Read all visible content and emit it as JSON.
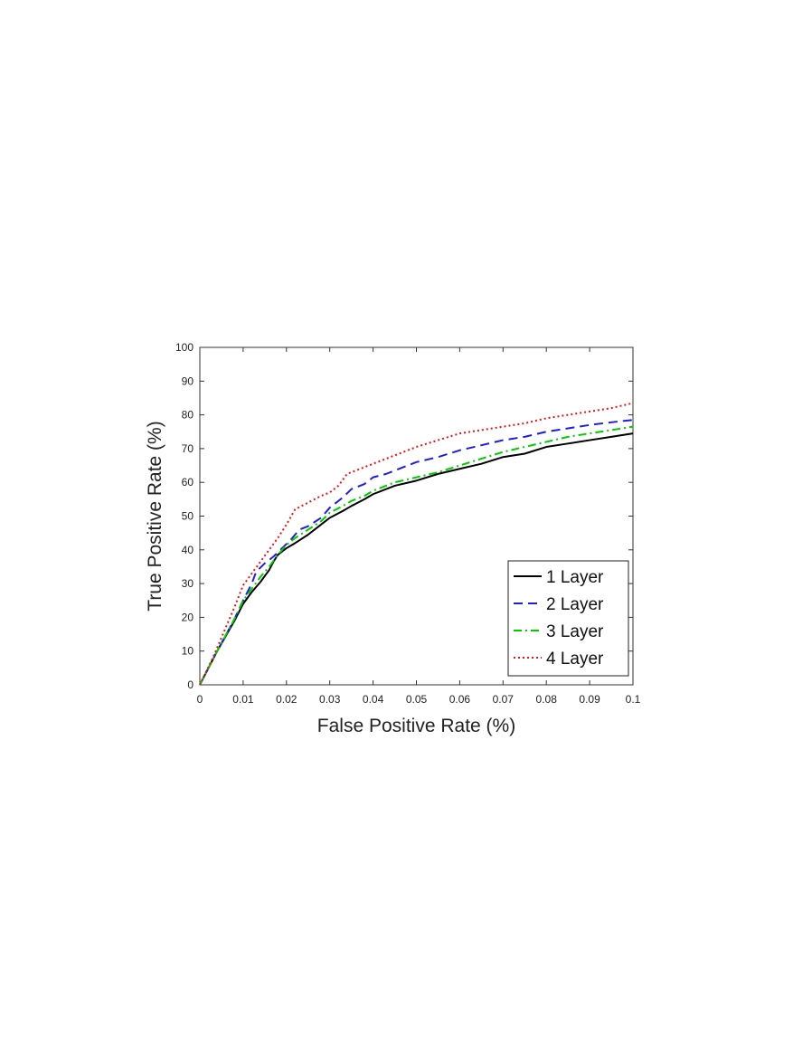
{
  "chart_data": {
    "type": "line",
    "title": "",
    "xlabel": "False Positive Rate (%)",
    "ylabel": "True Positive Rate (%)",
    "xlim": [
      0,
      0.1
    ],
    "ylim": [
      0,
      100
    ],
    "xticks": [
      0,
      0.01,
      0.02,
      0.03,
      0.04,
      0.05,
      0.06,
      0.07,
      0.08,
      0.09,
      0.1
    ],
    "xtick_labels": [
      "0",
      "0.01",
      "0.02",
      "0.03",
      "0.04",
      "0.05",
      "0.06",
      "0.07",
      "0.08",
      "0.09",
      "0.1"
    ],
    "yticks": [
      0,
      10,
      20,
      30,
      40,
      50,
      60,
      70,
      80,
      90,
      100
    ],
    "ytick_labels": [
      "0",
      "10",
      "20",
      "30",
      "40",
      "50",
      "60",
      "70",
      "80",
      "90",
      "100"
    ],
    "grid": false,
    "legend_position": "bottom-right",
    "series": [
      {
        "name": "1 Layer",
        "color": "#000000",
        "dash": "solid",
        "points": [
          [
            0,
            0
          ],
          [
            0.004,
            10
          ],
          [
            0.008,
            19
          ],
          [
            0.01,
            24
          ],
          [
            0.012,
            27.5
          ],
          [
            0.014,
            30.5
          ],
          [
            0.016,
            34
          ],
          [
            0.017,
            36.5
          ],
          [
            0.018,
            38.5
          ],
          [
            0.02,
            40.5
          ],
          [
            0.022,
            42
          ],
          [
            0.025,
            44.5
          ],
          [
            0.028,
            47.5
          ],
          [
            0.03,
            49.5
          ],
          [
            0.033,
            51.5
          ],
          [
            0.035,
            53
          ],
          [
            0.038,
            55
          ],
          [
            0.04,
            56.5
          ],
          [
            0.043,
            58
          ],
          [
            0.045,
            59
          ],
          [
            0.05,
            60.5
          ],
          [
            0.055,
            62.5
          ],
          [
            0.06,
            64
          ],
          [
            0.065,
            65.5
          ],
          [
            0.07,
            67.5
          ],
          [
            0.075,
            68.5
          ],
          [
            0.08,
            70.5
          ],
          [
            0.085,
            71.5
          ],
          [
            0.09,
            72.5
          ],
          [
            0.095,
            73.5
          ],
          [
            0.1,
            74.5
          ]
        ]
      },
      {
        "name": "2 Layer",
        "color": "#1f1fdb",
        "dash": "dashed",
        "points": [
          [
            0,
            0
          ],
          [
            0.004,
            10
          ],
          [
            0.008,
            19.5
          ],
          [
            0.01,
            25
          ],
          [
            0.012,
            30
          ],
          [
            0.013,
            33.5
          ],
          [
            0.015,
            36
          ],
          [
            0.017,
            38
          ],
          [
            0.019,
            40.5
          ],
          [
            0.021,
            43
          ],
          [
            0.023,
            46
          ],
          [
            0.025,
            47
          ],
          [
            0.028,
            49.5
          ],
          [
            0.03,
            52.5
          ],
          [
            0.033,
            55.5
          ],
          [
            0.035,
            58
          ],
          [
            0.038,
            59.5
          ],
          [
            0.04,
            61.5
          ],
          [
            0.043,
            62.5
          ],
          [
            0.045,
            63.5
          ],
          [
            0.05,
            66
          ],
          [
            0.055,
            67.5
          ],
          [
            0.06,
            69.5
          ],
          [
            0.065,
            71
          ],
          [
            0.07,
            72.5
          ],
          [
            0.075,
            73.5
          ],
          [
            0.08,
            75
          ],
          [
            0.085,
            76
          ],
          [
            0.09,
            77
          ],
          [
            0.095,
            77.8
          ],
          [
            0.1,
            78.5
          ]
        ]
      },
      {
        "name": "3 Layer",
        "color": "#00cc00",
        "dash": "dashdot",
        "points": [
          [
            0,
            0
          ],
          [
            0.004,
            10
          ],
          [
            0.008,
            19.5
          ],
          [
            0.01,
            25
          ],
          [
            0.012,
            28.5
          ],
          [
            0.014,
            32
          ],
          [
            0.016,
            35
          ],
          [
            0.018,
            38.5
          ],
          [
            0.02,
            41.5
          ],
          [
            0.022,
            43.5
          ],
          [
            0.025,
            46
          ],
          [
            0.028,
            48.5
          ],
          [
            0.03,
            51
          ],
          [
            0.033,
            53
          ],
          [
            0.035,
            54.5
          ],
          [
            0.038,
            56
          ],
          [
            0.04,
            57.5
          ],
          [
            0.043,
            59
          ],
          [
            0.045,
            60
          ],
          [
            0.05,
            61.5
          ],
          [
            0.055,
            63
          ],
          [
            0.06,
            65
          ],
          [
            0.065,
            67
          ],
          [
            0.07,
            69
          ],
          [
            0.075,
            70.5
          ],
          [
            0.08,
            72
          ],
          [
            0.085,
            73.5
          ],
          [
            0.09,
            74.5
          ],
          [
            0.095,
            75.5
          ],
          [
            0.1,
            76.5
          ]
        ]
      },
      {
        "name": "4 Layer",
        "color": "#ee1111",
        "dash": "dotted",
        "points": [
          [
            0,
            0
          ],
          [
            0.003,
            8
          ],
          [
            0.006,
            17
          ],
          [
            0.008,
            23
          ],
          [
            0.01,
            29.5
          ],
          [
            0.012,
            33
          ],
          [
            0.014,
            36.5
          ],
          [
            0.016,
            40
          ],
          [
            0.018,
            43.5
          ],
          [
            0.02,
            47.5
          ],
          [
            0.022,
            52
          ],
          [
            0.025,
            54
          ],
          [
            0.028,
            56
          ],
          [
            0.03,
            57
          ],
          [
            0.032,
            59
          ],
          [
            0.034,
            62.5
          ],
          [
            0.036,
            63.5
          ],
          [
            0.04,
            65.5
          ],
          [
            0.043,
            67
          ],
          [
            0.045,
            68
          ],
          [
            0.05,
            70.5
          ],
          [
            0.055,
            72.5
          ],
          [
            0.06,
            74.5
          ],
          [
            0.065,
            75.5
          ],
          [
            0.07,
            76.5
          ],
          [
            0.075,
            77.5
          ],
          [
            0.08,
            79
          ],
          [
            0.085,
            80
          ],
          [
            0.09,
            81
          ],
          [
            0.095,
            82
          ],
          [
            0.1,
            83.5
          ]
        ]
      }
    ]
  }
}
